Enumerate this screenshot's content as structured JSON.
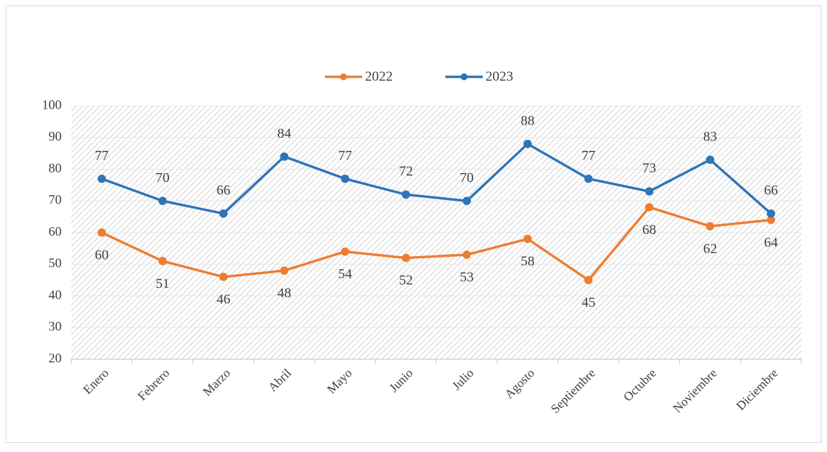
{
  "chart_data": {
    "type": "line",
    "categories": [
      "Enero",
      "Febrero",
      "Marzo",
      "Abril",
      "Mayo",
      "Junio",
      "Julio",
      "Agosto",
      "Septiembre",
      "Octubre",
      "Noviembre",
      "Diciembre"
    ],
    "series": [
      {
        "name": "2022",
        "color": "#ed7d31",
        "values": [
          60,
          51,
          46,
          48,
          54,
          52,
          53,
          58,
          45,
          68,
          62,
          64
        ],
        "label_position": "below"
      },
      {
        "name": "2023",
        "color": "#2e75b6",
        "values": [
          77,
          70,
          66,
          84,
          77,
          72,
          70,
          88,
          77,
          73,
          83,
          66
        ],
        "label_position": "above"
      }
    ],
    "ylim": [
      20,
      100
    ],
    "yticks": [
      20,
      30,
      40,
      50,
      60,
      70,
      80,
      90,
      100
    ],
    "grid": true,
    "legend": "top"
  }
}
